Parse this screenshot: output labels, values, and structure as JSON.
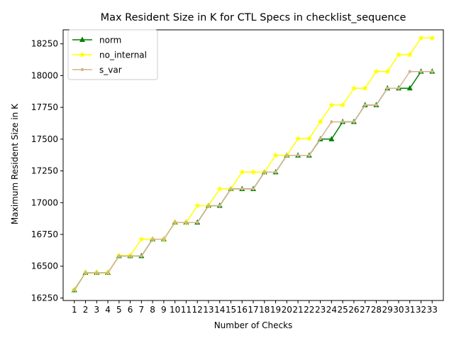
{
  "chart_data": {
    "type": "line",
    "title": "Max Resident Size in K for CTL Specs in checklist_sequence",
    "xlabel": "Number of Checks",
    "ylabel": "Maximum Resident Size in K",
    "x": [
      1,
      2,
      3,
      4,
      5,
      6,
      7,
      8,
      9,
      10,
      11,
      12,
      13,
      14,
      15,
      16,
      17,
      18,
      19,
      20,
      21,
      22,
      23,
      24,
      25,
      26,
      27,
      28,
      29,
      30,
      31,
      32,
      33
    ],
    "xlim": [
      0,
      34
    ],
    "ylim": [
      16230,
      18360
    ],
    "yticks": [
      16250,
      16500,
      16750,
      17000,
      17250,
      17500,
      17750,
      18000,
      18250
    ],
    "legend_position": "upper-left",
    "grid": false,
    "series": [
      {
        "name": "norm",
        "color": "#008000",
        "marker": "triangle",
        "values": [
          16312,
          16448,
          16448,
          16448,
          16580,
          16580,
          16580,
          16712,
          16712,
          16844,
          16844,
          16844,
          16976,
          16976,
          17108,
          17108,
          17108,
          17240,
          17240,
          17372,
          17372,
          17372,
          17500,
          17500,
          17636,
          17636,
          17768,
          17768,
          17900,
          17900,
          17900,
          18032,
          18032
        ]
      },
      {
        "name": "no_internal",
        "color": "#ffff00",
        "marker": "star",
        "values": [
          16316,
          16448,
          16448,
          16448,
          16584,
          16584,
          16712,
          16712,
          16712,
          16844,
          16844,
          16976,
          16976,
          17108,
          17108,
          17240,
          17240,
          17240,
          17372,
          17372,
          17504,
          17504,
          17636,
          17768,
          17768,
          17900,
          17900,
          18032,
          18032,
          18164,
          18164,
          18296,
          18296
        ]
      },
      {
        "name": "s_var",
        "color": "#d2b48c",
        "marker": "point",
        "values": [
          16316,
          16448,
          16448,
          16448,
          16580,
          16580,
          16580,
          16712,
          16712,
          16844,
          16844,
          16844,
          16976,
          16976,
          17108,
          17108,
          17108,
          17240,
          17240,
          17372,
          17372,
          17372,
          17504,
          17636,
          17636,
          17636,
          17768,
          17768,
          17900,
          17900,
          18032,
          18032,
          18032
        ]
      }
    ]
  }
}
